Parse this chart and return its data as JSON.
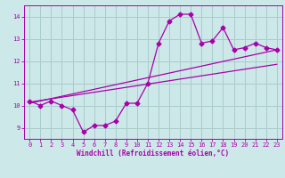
{
  "xlabel": "Windchill (Refroidissement éolien,°C)",
  "background_color": "#cce8e8",
  "line_color": "#aa00aa",
  "grid_color": "#aacccc",
  "xlim": [
    -0.5,
    23.5
  ],
  "ylim": [
    8.5,
    14.5
  ],
  "xticks": [
    0,
    1,
    2,
    3,
    4,
    5,
    6,
    7,
    8,
    9,
    10,
    11,
    12,
    13,
    14,
    15,
    16,
    17,
    18,
    19,
    20,
    21,
    22,
    23
  ],
  "yticks": [
    9,
    10,
    11,
    12,
    13,
    14
  ],
  "curve1_x": [
    0,
    1,
    2,
    3,
    4,
    5,
    6,
    7,
    8,
    9,
    10,
    11,
    12,
    13,
    14,
    15,
    16,
    17,
    18,
    19,
    20,
    21,
    22,
    23
  ],
  "curve1_y": [
    10.2,
    10.0,
    10.2,
    10.0,
    9.8,
    8.8,
    9.1,
    9.1,
    9.3,
    10.1,
    10.1,
    11.0,
    12.8,
    13.8,
    14.1,
    14.1,
    12.8,
    12.9,
    13.5,
    12.5,
    12.6,
    12.8,
    12.6,
    12.5
  ],
  "curve2_x": [
    0,
    23
  ],
  "curve2_y": [
    10.15,
    11.85
  ],
  "curve3_x": [
    0,
    23
  ],
  "curve3_y": [
    10.1,
    12.5
  ],
  "markersize": 2.5,
  "linewidth": 0.9,
  "tick_fontsize": 5.0,
  "xlabel_fontsize": 5.5
}
